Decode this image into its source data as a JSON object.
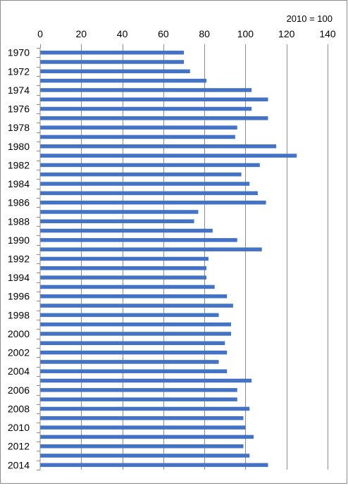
{
  "chart_data": {
    "type": "bar",
    "orientation": "horizontal",
    "unit_label": "2010 = 100",
    "title": "",
    "xlabel": "",
    "ylabel": "",
    "xlim": [
      0,
      140
    ],
    "x_ticks": [
      0,
      20,
      40,
      60,
      80,
      100,
      120,
      140
    ],
    "x_axis_position": "top",
    "grid": true,
    "legend": "none",
    "bar_color": "#4472C4",
    "categories": [
      "1970",
      "1971",
      "1972",
      "1973",
      "1974",
      "1975",
      "1976",
      "1977",
      "1978",
      "1979",
      "1980",
      "1981",
      "1982",
      "1983",
      "1984",
      "1985",
      "1986",
      "1987",
      "1988",
      "1989",
      "1990",
      "1991",
      "1992",
      "1993",
      "1994",
      "1995",
      "1996",
      "1997",
      "1998",
      "1999",
      "2000",
      "2001",
      "2002",
      "2003",
      "2004",
      "2005",
      "2006",
      "2007",
      "2008",
      "2009",
      "2010",
      "2011",
      "2012",
      "2013",
      "2014"
    ],
    "category_labels": [
      "1970",
      "",
      "1972",
      "",
      "1974",
      "",
      "1976",
      "",
      "1978",
      "",
      "1980",
      "",
      "1982",
      "",
      "1984",
      "",
      "1986",
      "",
      "1988",
      "",
      "1990",
      "",
      "1992",
      "",
      "1994",
      "",
      "1996",
      "",
      "1998",
      "",
      "2000",
      "",
      "2002",
      "",
      "2004",
      "",
      "2006",
      "",
      "2008",
      "",
      "2010",
      "",
      "2012",
      "",
      "2014"
    ],
    "values": [
      70,
      70,
      73,
      81,
      103,
      111,
      103,
      111,
      96,
      95,
      115,
      125,
      107,
      98,
      102,
      106,
      110,
      77,
      75,
      84,
      96,
      108,
      82,
      81,
      81,
      85,
      91,
      94,
      87,
      93,
      93,
      90,
      91,
      87,
      91,
      103,
      96,
      96,
      102,
      99,
      100,
      104,
      99,
      102,
      111
    ]
  }
}
